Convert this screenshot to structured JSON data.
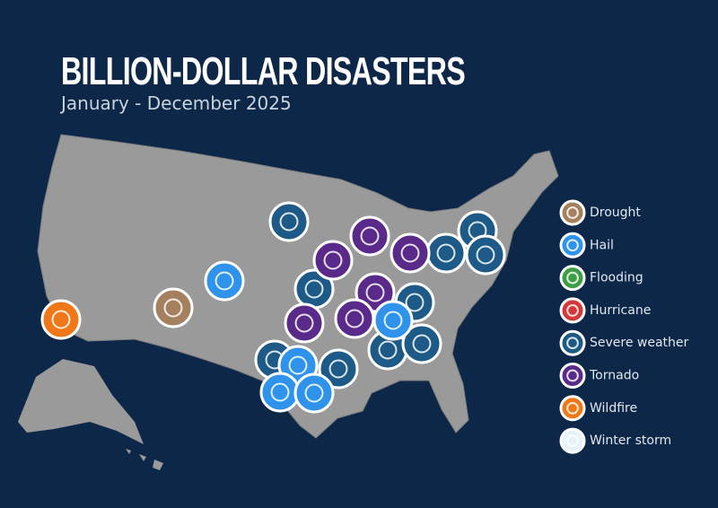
{
  "header": {
    "title": "BILLION-DOLLAR DISASTERS",
    "subtitle": "January - December 2025"
  },
  "legend": [
    {
      "label": "Drought",
      "color": "#a5805f"
    },
    {
      "label": "Hail",
      "color": "#2f93ec"
    },
    {
      "label": "Flooding",
      "color": "#3c9e45"
    },
    {
      "label": "Hurricane",
      "color": "#d43838"
    },
    {
      "label": "Severe weather",
      "color": "#1d5a87"
    },
    {
      "label": "Tornado",
      "color": "#5a2a8a"
    },
    {
      "label": "Wildfire",
      "color": "#f07818"
    },
    {
      "label": "Winter storm",
      "color": "#e6f3fb"
    }
  ]
}
